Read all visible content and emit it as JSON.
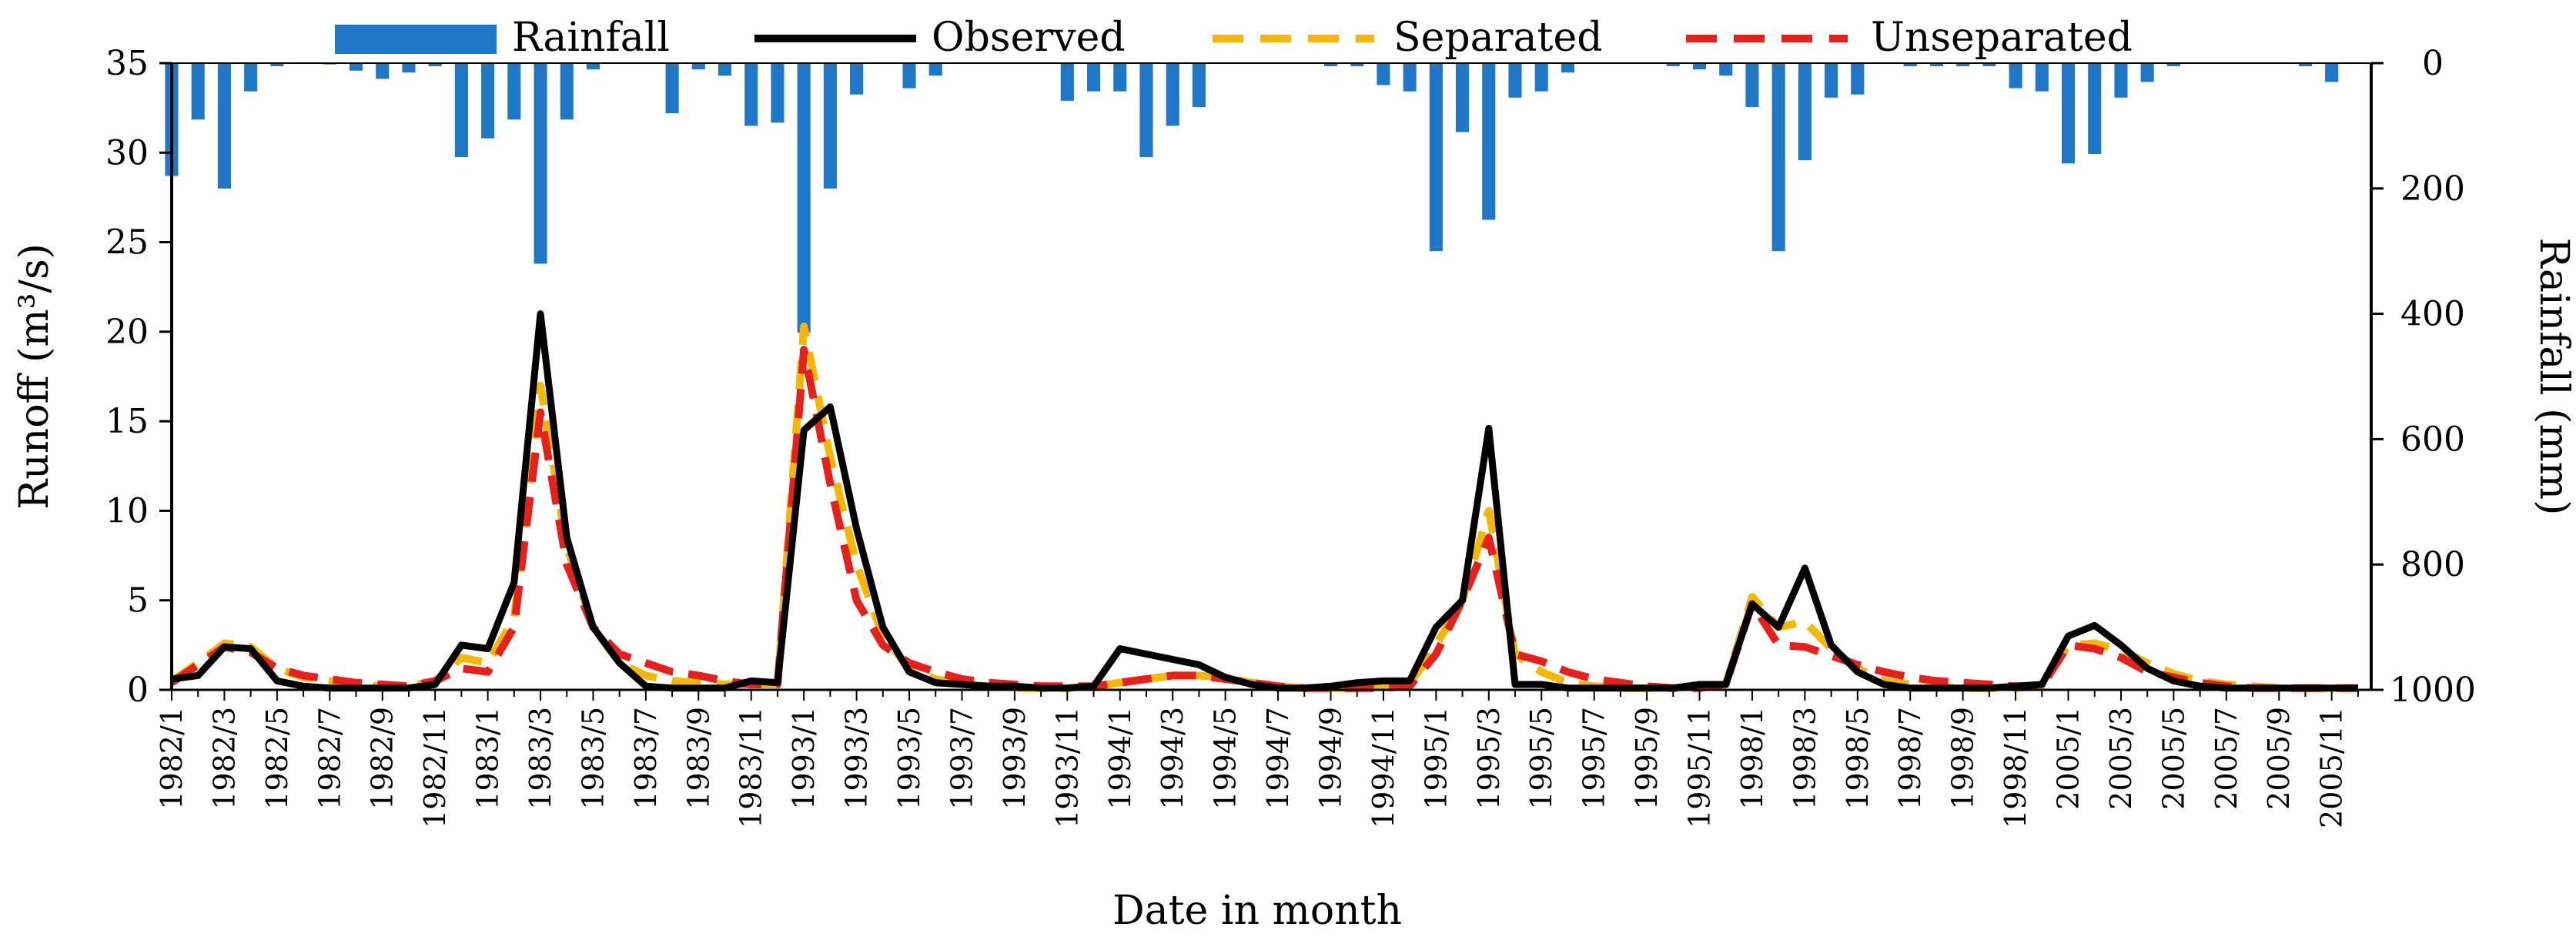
{
  "chart_data": {
    "type": "line",
    "title": "",
    "xlabel": "Date in month",
    "ylabel": "Runoff  (m³/s)",
    "ylabel_right": "Rainfall  (mm)",
    "ylim": [
      0,
      35
    ],
    "ylim_right": [
      0,
      1000
    ],
    "right_axis_inverted": true,
    "yticks": [
      0,
      5,
      10,
      15,
      20,
      25,
      30,
      35
    ],
    "yticks_right": [
      0,
      200,
      400,
      600,
      800,
      1000
    ],
    "legend_position": "top",
    "grid": false,
    "x": [
      "1982/1",
      "1982/2",
      "1982/3",
      "1982/4",
      "1982/5",
      "1982/6",
      "1982/7",
      "1982/8",
      "1982/9",
      "1982/10",
      "1982/11",
      "1982/12",
      "1983/1",
      "1983/2",
      "1983/3",
      "1983/4",
      "1983/5",
      "1983/6",
      "1983/7",
      "1983/8",
      "1983/9",
      "1983/10",
      "1983/11",
      "1983/12",
      "1993/1",
      "1993/2",
      "1993/3",
      "1993/4",
      "1993/5",
      "1993/6",
      "1993/7",
      "1993/8",
      "1993/9",
      "1993/10",
      "1993/11",
      "1993/12",
      "1994/1",
      "1994/2",
      "1994/3",
      "1994/4",
      "1994/5",
      "1994/6",
      "1994/7",
      "1994/8",
      "1994/9",
      "1994/10",
      "1994/11",
      "1994/12",
      "1995/1",
      "1995/2",
      "1995/3",
      "1995/4",
      "1995/5",
      "1995/6",
      "1995/7",
      "1995/8",
      "1995/9",
      "1995/10",
      "1995/11",
      "1995/12",
      "1998/1",
      "1998/2",
      "1998/3",
      "1998/4",
      "1998/5",
      "1998/6",
      "1998/7",
      "1998/8",
      "1998/9",
      "1998/10",
      "1998/11",
      "1998/12",
      "2005/1",
      "2005/2",
      "2005/3",
      "2005/4",
      "2005/5",
      "2005/6",
      "2005/7",
      "2005/8",
      "2005/9",
      "2005/10",
      "2005/11",
      "2005/12"
    ],
    "xtick_labels": [
      "1982/1",
      "1982/3",
      "1982/5",
      "1982/7",
      "1982/9",
      "1982/11",
      "1983/1",
      "1983/3",
      "1983/5",
      "1983/7",
      "1983/9",
      "1983/11",
      "1993/1",
      "1993/3",
      "1993/5",
      "1993/7",
      "1993/9",
      "1993/11",
      "1994/1",
      "1994/3",
      "1994/5",
      "1994/7",
      "1994/9",
      "1994/11",
      "1995/1",
      "1995/3",
      "1995/5",
      "1995/7",
      "1995/9",
      "1995/11",
      "1998/1",
      "1998/3",
      "1998/5",
      "1998/7",
      "1998/9",
      "1998/11",
      "2005/1",
      "2005/3",
      "2005/5",
      "2005/7",
      "2005/9",
      "2005/11"
    ],
    "series": [
      {
        "name": "Rainfall",
        "kind": "bar",
        "axis": "right",
        "color": "#1f77c8",
        "values": [
          180,
          90,
          200,
          45,
          5,
          0,
          2,
          12,
          25,
          15,
          5,
          150,
          120,
          90,
          320,
          90,
          10,
          0,
          0,
          80,
          10,
          20,
          100,
          95,
          430,
          200,
          50,
          0,
          40,
          20,
          0,
          0,
          0,
          0,
          60,
          45,
          45,
          150,
          100,
          70,
          0,
          0,
          0,
          0,
          5,
          5,
          35,
          45,
          300,
          110,
          250,
          55,
          45,
          15,
          0,
          0,
          0,
          5,
          10,
          20,
          70,
          300,
          155,
          55,
          50,
          0,
          5,
          5,
          5,
          5,
          40,
          45,
          160,
          145,
          55,
          30,
          5,
          0,
          0,
          0,
          0,
          5,
          30,
          0
        ]
      },
      {
        "name": "Observed",
        "kind": "line",
        "axis": "left",
        "color": "#000000",
        "dash": "solid",
        "values": [
          0.6,
          0.8,
          2.4,
          2.3,
          0.5,
          0.2,
          0.1,
          0.1,
          0.1,
          0.1,
          0.3,
          2.5,
          2.3,
          6.0,
          21.0,
          8.5,
          3.5,
          1.5,
          0.2,
          0.1,
          0.1,
          0.1,
          0.5,
          0.4,
          14.5,
          15.8,
          9.0,
          3.5,
          1.0,
          0.4,
          0.3,
          0.2,
          0.2,
          0.1,
          0.1,
          0.2,
          2.3,
          2.0,
          1.7,
          1.4,
          0.7,
          0.3,
          0.1,
          0.1,
          0.2,
          0.4,
          0.5,
          0.5,
          3.5,
          5.0,
          14.6,
          0.3,
          0.3,
          0.1,
          0.1,
          0.1,
          0.1,
          0.1,
          0.3,
          0.3,
          4.8,
          3.5,
          6.8,
          2.5,
          1.0,
          0.3,
          0.1,
          0.1,
          0.1,
          0.1,
          0.2,
          0.3,
          3.0,
          3.6,
          2.5,
          1.2,
          0.5,
          0.2,
          0.1,
          0.1,
          0.1,
          0.1,
          0.1,
          0.1
        ]
      },
      {
        "name": "Separated",
        "kind": "line",
        "axis": "left",
        "color": "#f5b800",
        "dash": "dashed",
        "values": [
          0.5,
          1.5,
          2.6,
          2.4,
          1.2,
          0.7,
          0.5,
          0.3,
          0.2,
          0.2,
          0.5,
          1.8,
          1.5,
          4.0,
          17.0,
          8.0,
          3.5,
          1.5,
          0.8,
          0.5,
          0.4,
          0.3,
          0.3,
          0.3,
          20.3,
          13.0,
          7.0,
          3.0,
          1.2,
          0.6,
          0.3,
          0.2,
          0.1,
          0.1,
          0.1,
          0.2,
          0.4,
          0.6,
          0.8,
          0.8,
          0.7,
          0.4,
          0.2,
          0.1,
          0.1,
          0.1,
          0.2,
          0.3,
          2.5,
          5.0,
          10.0,
          2.0,
          1.0,
          0.4,
          0.2,
          0.1,
          0.1,
          0.1,
          0.2,
          0.3,
          5.2,
          3.5,
          3.8,
          2.3,
          1.2,
          0.5,
          0.3,
          0.2,
          0.1,
          0.1,
          0.1,
          0.2,
          2.5,
          2.6,
          2.2,
          1.5,
          0.9,
          0.5,
          0.3,
          0.2,
          0.1,
          0.1,
          0.1,
          0.1
        ]
      },
      {
        "name": "Unseparated",
        "kind": "line",
        "axis": "left",
        "color": "#e8201c",
        "dash": "dashed",
        "values": [
          0.4,
          1.4,
          2.4,
          2.1,
          1.2,
          0.8,
          0.6,
          0.4,
          0.3,
          0.2,
          0.5,
          1.2,
          1.0,
          3.5,
          15.5,
          7.0,
          3.5,
          2.0,
          1.5,
          1.0,
          0.8,
          0.5,
          0.3,
          0.3,
          19.0,
          11.5,
          5.0,
          2.5,
          1.5,
          1.0,
          0.6,
          0.4,
          0.3,
          0.2,
          0.2,
          0.2,
          0.4,
          0.6,
          0.8,
          0.8,
          0.6,
          0.4,
          0.2,
          0.1,
          0.1,
          0.1,
          0.1,
          0.2,
          2.0,
          5.0,
          8.5,
          2.0,
          1.6,
          1.0,
          0.6,
          0.4,
          0.2,
          0.1,
          0.1,
          0.3,
          4.8,
          2.5,
          2.4,
          1.9,
          1.4,
          1.0,
          0.7,
          0.5,
          0.4,
          0.3,
          0.2,
          0.2,
          2.5,
          2.3,
          1.8,
          1.0,
          0.7,
          0.4,
          0.2,
          0.1,
          0.1,
          0.1,
          0.1,
          0.1
        ]
      }
    ]
  }
}
